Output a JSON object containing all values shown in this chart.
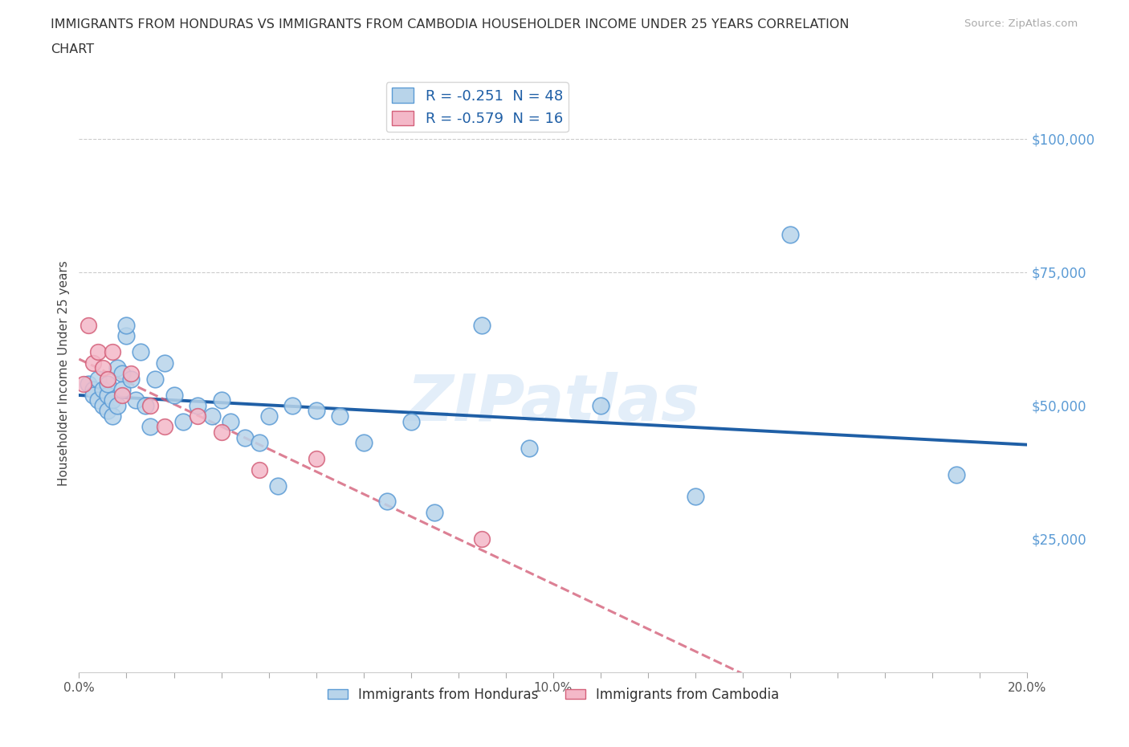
{
  "title_line1": "IMMIGRANTS FROM HONDURAS VS IMMIGRANTS FROM CAMBODIA HOUSEHOLDER INCOME UNDER 25 YEARS CORRELATION",
  "title_line2": "CHART",
  "source": "Source: ZipAtlas.com",
  "ylabel": "Householder Income Under 25 years",
  "watermark": "ZIPatlas",
  "xlim": [
    0.0,
    0.2
  ],
  "ylim": [
    0,
    112000
  ],
  "ytick_right": [
    25000,
    50000,
    75000,
    100000
  ],
  "ytick_right_labels": [
    "$25,000",
    "$50,000",
    "$75,000",
    "$100,000"
  ],
  "honduras_color": "#b8d4ea",
  "honduras_edge": "#5b9bd5",
  "cambodia_color": "#f4b8c8",
  "cambodia_edge": "#d4607a",
  "trendline_honduras_color": "#1f5fa6",
  "trendline_cambodia_color": "#d4607a",
  "hon_R": -0.251,
  "hon_N": 48,
  "cam_R": -0.579,
  "cam_N": 16,
  "honduras_x": [
    0.002,
    0.003,
    0.003,
    0.004,
    0.004,
    0.005,
    0.005,
    0.006,
    0.006,
    0.006,
    0.007,
    0.007,
    0.008,
    0.008,
    0.009,
    0.009,
    0.01,
    0.01,
    0.011,
    0.012,
    0.013,
    0.014,
    0.015,
    0.016,
    0.018,
    0.02,
    0.022,
    0.025,
    0.028,
    0.03,
    0.032,
    0.035,
    0.038,
    0.04,
    0.042,
    0.045,
    0.05,
    0.055,
    0.06,
    0.065,
    0.07,
    0.075,
    0.085,
    0.095,
    0.11,
    0.13,
    0.15,
    0.185
  ],
  "honduras_y": [
    54000,
    53000,
    52000,
    55000,
    51000,
    50000,
    53000,
    49000,
    52000,
    54000,
    51000,
    48000,
    50000,
    57000,
    56000,
    53000,
    63000,
    65000,
    55000,
    51000,
    60000,
    50000,
    46000,
    55000,
    58000,
    52000,
    47000,
    50000,
    48000,
    51000,
    47000,
    44000,
    43000,
    48000,
    35000,
    50000,
    49000,
    48000,
    43000,
    32000,
    47000,
    30000,
    65000,
    42000,
    50000,
    33000,
    82000,
    37000
  ],
  "cambodia_x": [
    0.001,
    0.002,
    0.003,
    0.004,
    0.005,
    0.006,
    0.007,
    0.009,
    0.011,
    0.015,
    0.018,
    0.025,
    0.03,
    0.038,
    0.05,
    0.085
  ],
  "cambodia_y": [
    54000,
    65000,
    58000,
    60000,
    57000,
    55000,
    60000,
    52000,
    56000,
    50000,
    46000,
    48000,
    45000,
    38000,
    40000,
    25000
  ]
}
